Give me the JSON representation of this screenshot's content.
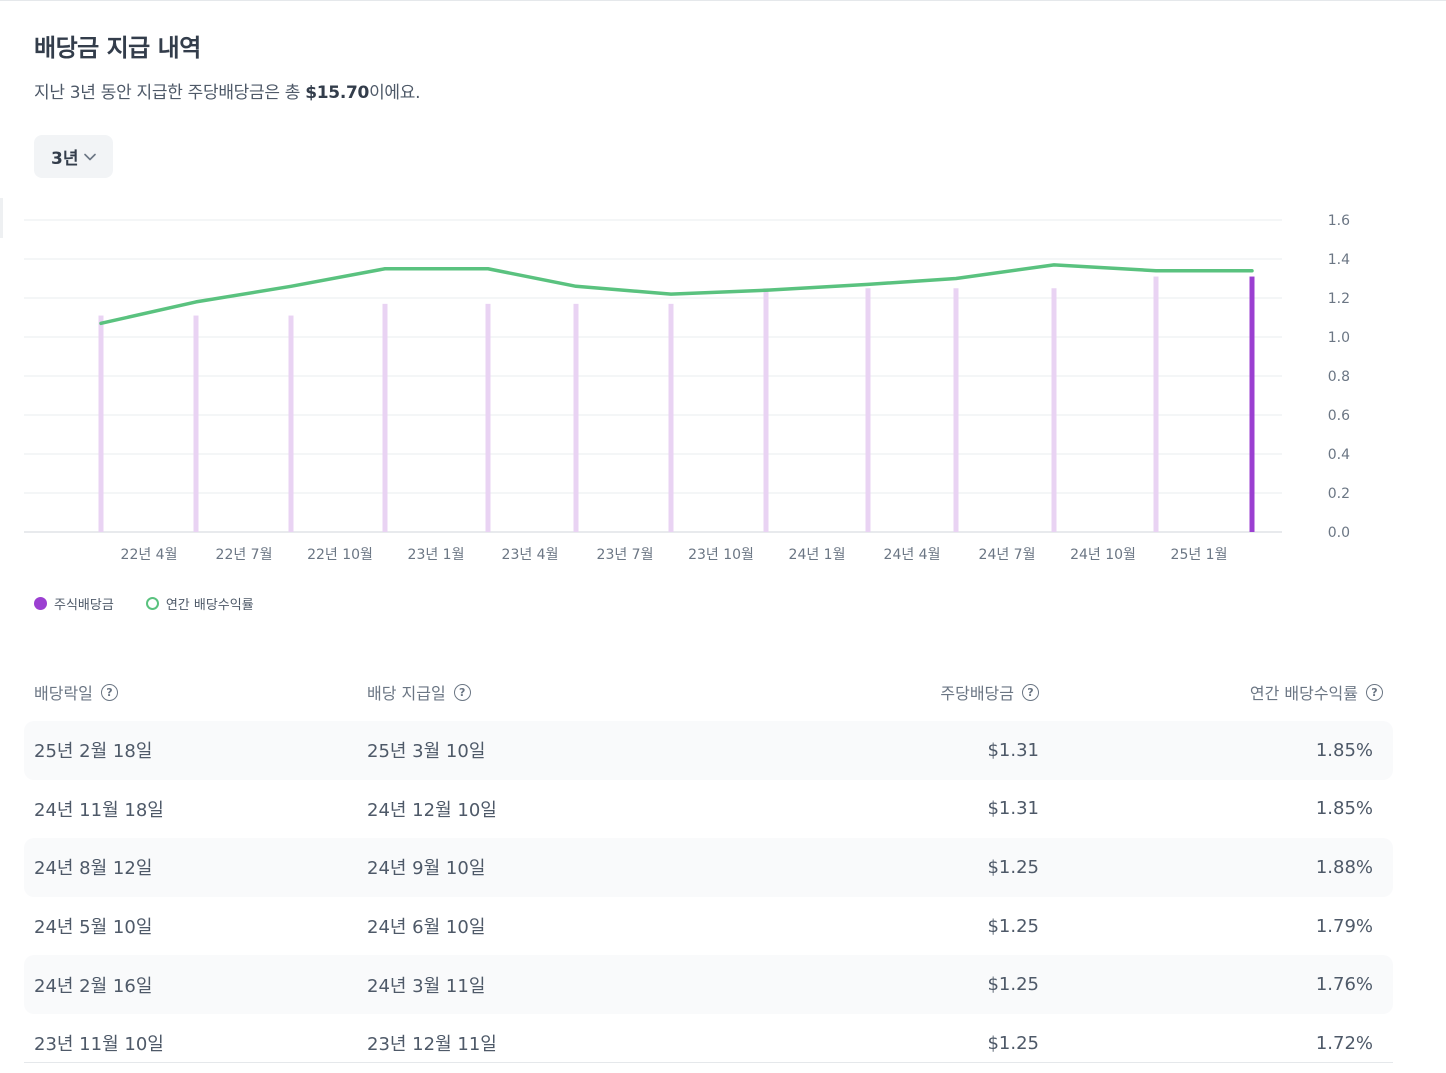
{
  "title": "배당금 지급 내역",
  "subtitle": {
    "prefix": "지난 3년 동안 지급한 주당배당금은 총 ",
    "amount": "$15.70",
    "suffix": "이에요."
  },
  "period_select": {
    "value": "3년"
  },
  "chart_data": {
    "type": "bar",
    "x_tick_labels": [
      "22년 4월",
      "22년 7월",
      "22년 10월",
      "23년 1월",
      "23년 4월",
      "23년 7월",
      "23년 10월",
      "24년 1월",
      "24년 4월",
      "24년 7월",
      "24년 10월",
      "25년 1월"
    ],
    "y_ticks": [
      "0.0",
      "0.2",
      "0.4",
      "0.6",
      "0.8",
      "1.0",
      "1.2",
      "1.4",
      "1.6"
    ],
    "ylim": [
      0,
      1.6
    ],
    "grid": true,
    "series": [
      {
        "name": "주식배당금",
        "type": "bar",
        "color": "#e9d3f3",
        "highlight_color": "#9b3fd1",
        "values": [
          1.11,
          1.11,
          1.11,
          1.17,
          1.17,
          1.17,
          1.17,
          1.25,
          1.25,
          1.25,
          1.25,
          1.31,
          1.31
        ]
      },
      {
        "name": "연간 배당수익률",
        "type": "line",
        "color": "#5ac27f",
        "values": [
          1.07,
          1.18,
          1.26,
          1.35,
          1.35,
          1.26,
          1.22,
          1.24,
          1.27,
          1.3,
          1.37,
          1.34,
          1.34
        ]
      }
    ]
  },
  "legend": [
    {
      "label": "주식배당금",
      "color": "#9b3fd1"
    },
    {
      "label": "연간 배당수익률",
      "color": "#5ac27f"
    }
  ],
  "table": {
    "headers": [
      "배당락일",
      "배당 지급일",
      "주당배당금",
      "연간 배당수익률"
    ],
    "help_glyph": "?",
    "rows": [
      {
        "ex_date": "25년 2월 18일",
        "pay_date": "25년 3월 10일",
        "dps": "$1.31",
        "yield": "1.85%"
      },
      {
        "ex_date": "24년 11월 18일",
        "pay_date": "24년 12월 10일",
        "dps": "$1.31",
        "yield": "1.85%"
      },
      {
        "ex_date": "24년 8월 12일",
        "pay_date": "24년 9월 10일",
        "dps": "$1.25",
        "yield": "1.88%"
      },
      {
        "ex_date": "24년 5월 10일",
        "pay_date": "24년 6월 10일",
        "dps": "$1.25",
        "yield": "1.79%"
      },
      {
        "ex_date": "24년 2월 16일",
        "pay_date": "24년 3월 11일",
        "dps": "$1.25",
        "yield": "1.76%"
      },
      {
        "ex_date": "23년 11월 10일",
        "pay_date": "23년 12월 11일",
        "dps": "$1.25",
        "yield": "1.72%"
      }
    ]
  }
}
